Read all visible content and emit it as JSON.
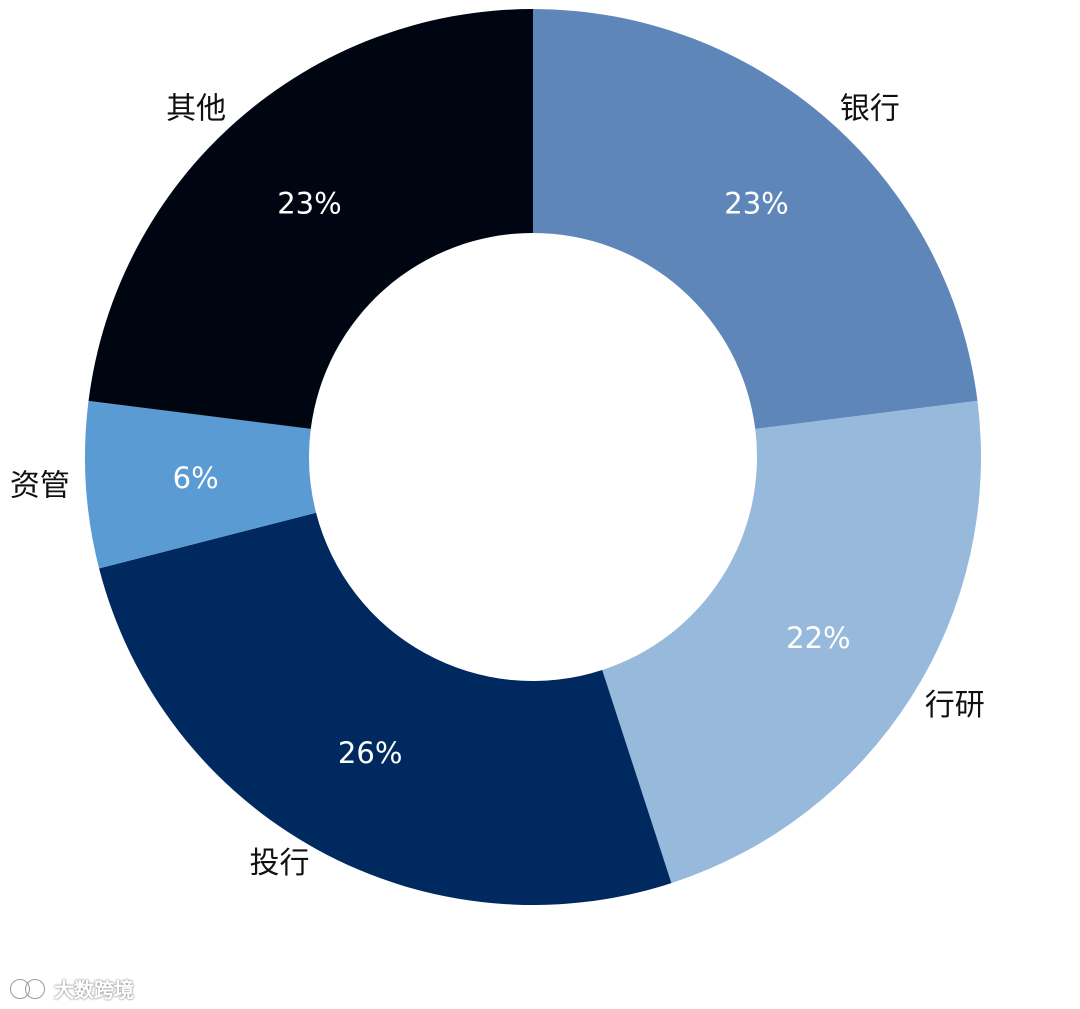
{
  "chart_data": {
    "type": "pie",
    "donut": true,
    "title": "",
    "slices": [
      {
        "label": "银行",
        "value": 23,
        "value_label": "23%",
        "color": "#5f86b9"
      },
      {
        "label": "行研",
        "value": 22,
        "value_label": "22%",
        "color": "#97b9dc"
      },
      {
        "label": "投行",
        "value": 26,
        "value_label": "26%",
        "color": "#002a5f"
      },
      {
        "label": "资管",
        "value": 6,
        "value_label": "6%",
        "color": "#5b9bd3"
      },
      {
        "label": "其他",
        "value": 23,
        "value_label": "23%",
        "color": "#000611"
      }
    ],
    "start_at": "12 o'clock",
    "direction": "clockwise",
    "legend": "none"
  },
  "watermark": {
    "text": "大数跨境",
    "logo_icon": "brand-logo-icon"
  }
}
